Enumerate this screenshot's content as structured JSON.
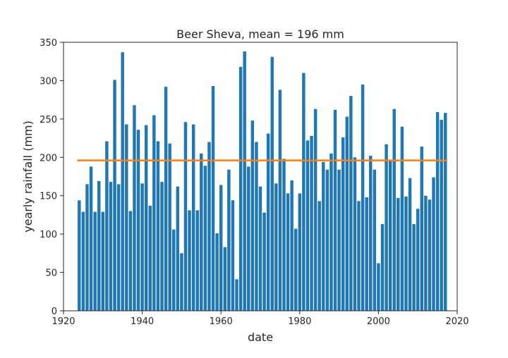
{
  "chart_data": {
    "type": "bar",
    "title": "Beer Sheva, mean = 196 mm",
    "xlabel": "date",
    "ylabel": "yearly rainfall (mm)",
    "xlim": [
      1920,
      2020
    ],
    "ylim": [
      0,
      350
    ],
    "xticks": [
      1920,
      1940,
      1960,
      1980,
      2000,
      2020
    ],
    "yticks": [
      0,
      50,
      100,
      150,
      200,
      250,
      300,
      350
    ],
    "grid": false,
    "legend": "none",
    "bar_color": "#1f77b4",
    "mean_line": {
      "value": 196,
      "x_range": [
        1924,
        2017
      ],
      "color": "#ff7f0e"
    },
    "x": [
      1924,
      1925,
      1926,
      1927,
      1928,
      1929,
      1930,
      1931,
      1932,
      1933,
      1934,
      1935,
      1936,
      1937,
      1938,
      1939,
      1940,
      1941,
      1942,
      1943,
      1944,
      1945,
      1946,
      1947,
      1948,
      1949,
      1950,
      1951,
      1952,
      1953,
      1954,
      1955,
      1956,
      1957,
      1958,
      1959,
      1960,
      1961,
      1962,
      1963,
      1964,
      1965,
      1966,
      1967,
      1968,
      1969,
      1970,
      1971,
      1972,
      1973,
      1974,
      1975,
      1976,
      1977,
      1978,
      1979,
      1980,
      1981,
      1982,
      1983,
      1984,
      1985,
      1986,
      1987,
      1988,
      1989,
      1990,
      1991,
      1992,
      1993,
      1994,
      1995,
      1996,
      1997,
      1998,
      1999,
      2000,
      2001,
      2002,
      2003,
      2004,
      2005,
      2006,
      2007,
      2008,
      2009,
      2010,
      2011,
      2012,
      2013,
      2014,
      2015,
      2016,
      2017
    ],
    "values": [
      144,
      129,
      165,
      188,
      129,
      169,
      129,
      221,
      168,
      301,
      165,
      337,
      243,
      130,
      268,
      236,
      166,
      242,
      137,
      255,
      221,
      168,
      292,
      218,
      106,
      162,
      75,
      246,
      131,
      243,
      131,
      205,
      189,
      220,
      293,
      101,
      164,
      83,
      184,
      144,
      41,
      318,
      338,
      188,
      248,
      220,
      162,
      128,
      231,
      331,
      166,
      288,
      198,
      153,
      170,
      107,
      153,
      310,
      222,
      228,
      263,
      143,
      194,
      184,
      205,
      262,
      184,
      226,
      253,
      280,
      200,
      143,
      295,
      148,
      202,
      184,
      62,
      113,
      217,
      196,
      263,
      147,
      240,
      149,
      173,
      113,
      133,
      214,
      150,
      145,
      174,
      259,
      249,
      258
    ]
  }
}
